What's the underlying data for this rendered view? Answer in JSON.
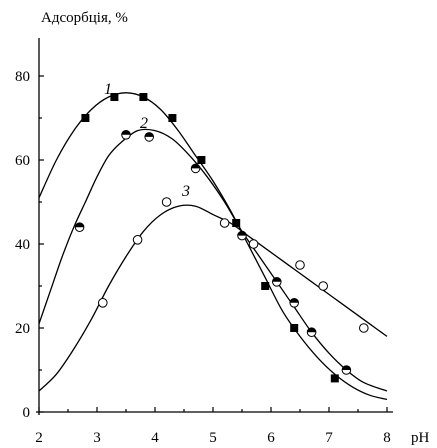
{
  "chart_data": {
    "type": "scatter",
    "ylabel": "Адсорбція, %",
    "xlabel": "pH",
    "xlim": [
      2,
      8
    ],
    "ylim": [
      0,
      92
    ],
    "x_ticks": [
      2,
      3,
      4,
      5,
      6,
      7,
      8
    ],
    "y_ticks": [
      0,
      20,
      40,
      60,
      80
    ],
    "grid": false,
    "legend": "none",
    "series": [
      {
        "name": "1",
        "marker": "filled-square",
        "points": [
          [
            2.8,
            70
          ],
          [
            3.3,
            75
          ],
          [
            3.8,
            75
          ],
          [
            4.3,
            70
          ],
          [
            4.8,
            60
          ],
          [
            5.4,
            45
          ],
          [
            5.9,
            30
          ],
          [
            6.4,
            20
          ],
          [
            7.1,
            8
          ]
        ],
        "curve": [
          [
            2.0,
            51
          ],
          [
            2.3,
            60
          ],
          [
            2.6,
            67
          ],
          [
            2.9,
            72
          ],
          [
            3.2,
            75
          ],
          [
            3.5,
            76
          ],
          [
            3.8,
            75
          ],
          [
            4.1,
            72
          ],
          [
            4.4,
            67
          ],
          [
            4.7,
            61
          ],
          [
            5.0,
            55
          ],
          [
            5.3,
            48
          ],
          [
            5.6,
            40
          ],
          [
            5.9,
            32
          ],
          [
            6.2,
            24
          ],
          [
            6.5,
            18
          ],
          [
            6.8,
            13
          ],
          [
            7.1,
            9
          ],
          [
            7.4,
            6
          ],
          [
            7.7,
            4
          ],
          [
            8.0,
            3
          ]
        ]
      },
      {
        "name": "2",
        "marker": "half-filled-circle",
        "points": [
          [
            2.7,
            44
          ],
          [
            3.5,
            66
          ],
          [
            3.9,
            65.5
          ],
          [
            4.7,
            58
          ],
          [
            5.5,
            42
          ],
          [
            6.1,
            31
          ],
          [
            6.4,
            26
          ],
          [
            6.7,
            19
          ],
          [
            7.3,
            10
          ]
        ],
        "curve": [
          [
            2.0,
            21
          ],
          [
            2.2,
            29
          ],
          [
            2.4,
            37
          ],
          [
            2.6,
            44
          ],
          [
            2.8,
            50
          ],
          [
            3.0,
            56
          ],
          [
            3.2,
            61
          ],
          [
            3.4,
            64
          ],
          [
            3.7,
            67
          ],
          [
            4.0,
            67
          ],
          [
            4.3,
            65
          ],
          [
            4.6,
            61
          ],
          [
            4.9,
            56
          ],
          [
            5.2,
            50
          ],
          [
            5.5,
            43
          ],
          [
            5.8,
            37
          ],
          [
            6.1,
            31
          ],
          [
            6.4,
            25
          ],
          [
            6.7,
            19
          ],
          [
            7.0,
            14
          ],
          [
            7.3,
            10
          ],
          [
            7.6,
            7
          ],
          [
            8.0,
            5
          ]
        ]
      },
      {
        "name": "3",
        "marker": "open-circle",
        "points": [
          [
            3.1,
            26
          ],
          [
            3.7,
            41
          ],
          [
            4.2,
            50
          ],
          [
            5.2,
            45
          ],
          [
            5.7,
            40
          ],
          [
            6.5,
            35
          ],
          [
            6.9,
            30
          ],
          [
            7.6,
            20
          ]
        ],
        "curve": [
          [
            2.0,
            5
          ],
          [
            2.3,
            9
          ],
          [
            2.6,
            15
          ],
          [
            2.9,
            22
          ],
          [
            3.2,
            30
          ],
          [
            3.5,
            37
          ],
          [
            3.8,
            43
          ],
          [
            4.1,
            47
          ],
          [
            4.4,
            49
          ],
          [
            4.7,
            49
          ],
          [
            5.0,
            47
          ],
          [
            5.3,
            45
          ],
          [
            5.6,
            42
          ],
          [
            5.9,
            39
          ],
          [
            6.2,
            36
          ],
          [
            6.5,
            33
          ],
          [
            6.8,
            30
          ],
          [
            7.1,
            27
          ],
          [
            7.4,
            24
          ],
          [
            7.7,
            21
          ],
          [
            8.0,
            18
          ]
        ]
      }
    ]
  }
}
